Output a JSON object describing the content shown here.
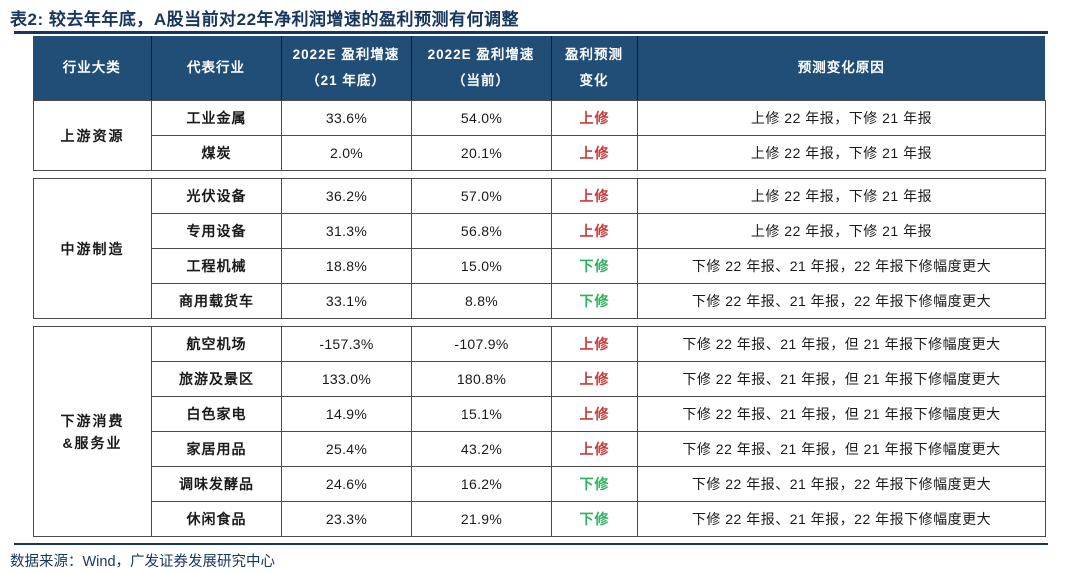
{
  "page": {
    "title": "表2: 较去年年底，A股当前对22年净利润增速的盈利预测有何调整",
    "source": "数据来源：Wind，广发证券发展研究中心"
  },
  "colors": {
    "header_bg": "#204e77",
    "category_bg": "#d9dff0",
    "title_navy": "#17365d",
    "up_red": "#c93a3a",
    "down_green": "#2db35f"
  },
  "table": {
    "columns": [
      {
        "line1": "行业大类",
        "line2": ""
      },
      {
        "line1": "代表行业",
        "line2": ""
      },
      {
        "line1": "2022E 盈利增速",
        "line2": "（21 年底）"
      },
      {
        "line1": "2022E 盈利增速",
        "line2": "（当前）"
      },
      {
        "line1": "盈利预测",
        "line2": "变化"
      },
      {
        "line1": "预测变化原因",
        "line2": ""
      }
    ],
    "groups": [
      {
        "category_line1": "上游资源",
        "category_line2": "",
        "rows": [
          {
            "industry": "工业金属",
            "g2021": "33.6%",
            "current": "54.0%",
            "change": "上修",
            "dir": "up",
            "reason": "上修 22 年报，下修 21 年报"
          },
          {
            "industry": "煤炭",
            "g2021": "2.0%",
            "current": "20.1%",
            "change": "上修",
            "dir": "up",
            "reason": "上修 22 年报，下修 21 年报"
          }
        ]
      },
      {
        "category_line1": "中游制造",
        "category_line2": "",
        "rows": [
          {
            "industry": "光伏设备",
            "g2021": "36.2%",
            "current": "57.0%",
            "change": "上修",
            "dir": "up",
            "reason": "上修 22 年报，下修 21 年报"
          },
          {
            "industry": "专用设备",
            "g2021": "31.3%",
            "current": "56.8%",
            "change": "上修",
            "dir": "up",
            "reason": "上修 22 年报，下修 21 年报"
          },
          {
            "industry": "工程机械",
            "g2021": "18.8%",
            "current": "15.0%",
            "change": "下修",
            "dir": "down",
            "reason": "下修 22 年报、21 年报，22 年报下修幅度更大"
          },
          {
            "industry": "商用载货车",
            "g2021": "33.1%",
            "current": "8.8%",
            "change": "下修",
            "dir": "down",
            "reason": "下修 22 年报、21 年报，22 年报下修幅度更大"
          }
        ]
      },
      {
        "category_line1": "下游消费",
        "category_line2": "&服务业",
        "rows": [
          {
            "industry": "航空机场",
            "g2021": "-157.3%",
            "current": "-107.9%",
            "change": "上修",
            "dir": "up",
            "reason": "下修 22 年报、21 年报，但 21 年报下修幅度更大"
          },
          {
            "industry": "旅游及景区",
            "g2021": "133.0%",
            "current": "180.8%",
            "change": "上修",
            "dir": "up",
            "reason": "下修 22 年报、21 年报，但 21 年报下修幅度更大"
          },
          {
            "industry": "白色家电",
            "g2021": "14.9%",
            "current": "15.1%",
            "change": "上修",
            "dir": "up",
            "reason": "下修 22 年报、21 年报，但 21 年报下修幅度更大"
          },
          {
            "industry": "家居用品",
            "g2021": "25.4%",
            "current": "43.2%",
            "change": "上修",
            "dir": "up",
            "reason": "下修 22 年报、21 年报，但 21 年报下修幅度更大"
          },
          {
            "industry": "调味发酵品",
            "g2021": "24.6%",
            "current": "16.2%",
            "change": "下修",
            "dir": "down",
            "reason": "下修 22 年报、21 年报，22 年报下修幅度更大"
          },
          {
            "industry": "休闲食品",
            "g2021": "23.3%",
            "current": "21.9%",
            "change": "下修",
            "dir": "down",
            "reason": "下修 22 年报、21 年报，22 年报下修幅度更大"
          }
        ]
      }
    ]
  }
}
